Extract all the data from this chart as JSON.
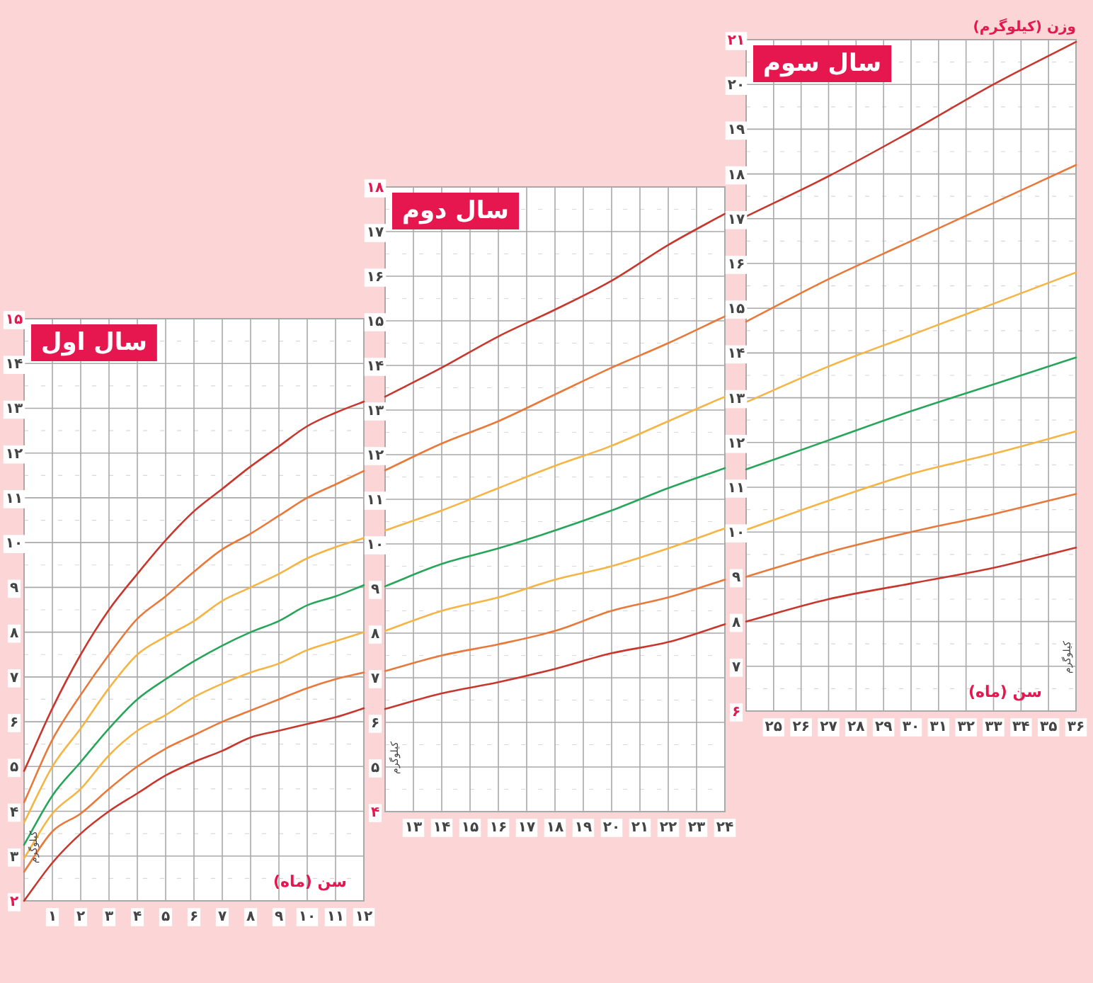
{
  "chart_data": [
    {
      "type": "line",
      "title": "سال اول",
      "xlabel": "سن (ماه)",
      "ylabel": "کیلوگرم",
      "grid": true,
      "x": [
        0,
        1,
        2,
        3,
        4,
        5,
        6,
        7,
        8,
        9,
        10,
        11,
        12
      ],
      "xlim": [
        0,
        12
      ],
      "ylim": [
        2,
        15
      ],
      "xticks": [
        {
          "value": 0,
          "label": null
        },
        {
          "value": 1,
          "label": "۱"
        },
        {
          "value": 2,
          "label": "۲"
        },
        {
          "value": 3,
          "label": "۳"
        },
        {
          "value": 4,
          "label": "۴"
        },
        {
          "value": 5,
          "label": "۵"
        },
        {
          "value": 6,
          "label": "۶"
        },
        {
          "value": 7,
          "label": "۷"
        },
        {
          "value": 8,
          "label": "۸"
        },
        {
          "value": 9,
          "label": "۹"
        },
        {
          "value": 10,
          "label": "۱۰"
        },
        {
          "value": 11,
          "label": "۱۱"
        },
        {
          "value": 12,
          "label": "۱۲"
        }
      ],
      "yticks": [
        {
          "value": 2,
          "label": "۲"
        },
        {
          "value": 3,
          "label": "۳"
        },
        {
          "value": 4,
          "label": "۴"
        },
        {
          "value": 5,
          "label": "۵"
        },
        {
          "value": 6,
          "label": "۶"
        },
        {
          "value": 7,
          "label": "۷"
        },
        {
          "value": 8,
          "label": "۸"
        },
        {
          "value": 9,
          "label": "۹"
        },
        {
          "value": 10,
          "label": "۱۰"
        },
        {
          "value": 11,
          "label": "۱۱"
        },
        {
          "value": 12,
          "label": "۱۲"
        },
        {
          "value": 13,
          "label": "۱۳"
        },
        {
          "value": 14,
          "label": "۱۴"
        },
        {
          "value": 15,
          "label": "۱۵"
        }
      ],
      "series": [
        {
          "color": "#c8372d",
          "values": [
            4.9,
            6.3,
            7.5,
            8.5,
            9.3,
            10.05,
            10.7,
            11.2,
            11.7,
            12.15,
            12.6,
            12.9,
            13.15
          ]
        },
        {
          "color": "#e8793a",
          "values": [
            4.2,
            5.6,
            6.6,
            7.5,
            8.3,
            8.8,
            9.35,
            9.85,
            10.2,
            10.6,
            11.0,
            11.3,
            11.6
          ]
        },
        {
          "color": "#f6b444",
          "values": [
            3.75,
            5.0,
            5.85,
            6.75,
            7.5,
            7.9,
            8.25,
            8.7,
            9.0,
            9.3,
            9.65,
            9.9,
            10.1
          ]
        },
        {
          "color": "#27a55a",
          "values": [
            3.25,
            4.35,
            5.1,
            5.85,
            6.5,
            6.95,
            7.35,
            7.7,
            8.0,
            8.25,
            8.6,
            8.8,
            9.05
          ]
        },
        {
          "color": "#f6b444",
          "values": [
            2.95,
            3.95,
            4.5,
            5.25,
            5.8,
            6.15,
            6.55,
            6.85,
            7.1,
            7.3,
            7.6,
            7.8,
            8.0
          ]
        },
        {
          "color": "#e8793a",
          "values": [
            2.65,
            3.55,
            3.95,
            4.5,
            5.0,
            5.4,
            5.7,
            6.0,
            6.25,
            6.5,
            6.75,
            6.95,
            7.1
          ]
        },
        {
          "color": "#c8372d",
          "values": [
            2.0,
            2.85,
            3.5,
            4.0,
            4.4,
            4.8,
            5.1,
            5.35,
            5.65,
            5.8,
            5.95,
            6.1,
            6.3
          ]
        }
      ]
    },
    {
      "type": "line",
      "title": "سال دوم",
      "ylabel": "کیلوگرم",
      "grid": true,
      "x": [
        12,
        14,
        16,
        18,
        20,
        22,
        24
      ],
      "xlim": [
        12,
        24
      ],
      "ylim": [
        4,
        18
      ],
      "xticks": [
        {
          "value": 12,
          "label": null
        },
        {
          "value": 13,
          "label": "۱۳"
        },
        {
          "value": 14,
          "label": "۱۴"
        },
        {
          "value": 15,
          "label": "۱۵"
        },
        {
          "value": 16,
          "label": "۱۶"
        },
        {
          "value": 17,
          "label": "۱۷"
        },
        {
          "value": 18,
          "label": "۱۸"
        },
        {
          "value": 19,
          "label": "۱۹"
        },
        {
          "value": 20,
          "label": "۲۰"
        },
        {
          "value": 21,
          "label": "۲۱"
        },
        {
          "value": 22,
          "label": "۲۲"
        },
        {
          "value": 23,
          "label": "۲۳"
        },
        {
          "value": 24,
          "label": "۲۴"
        }
      ],
      "yticks": [
        {
          "value": 4,
          "label": "۴"
        },
        {
          "value": 5,
          "label": "۵"
        },
        {
          "value": 6,
          "label": "۶"
        },
        {
          "value": 7,
          "label": "۷"
        },
        {
          "value": 8,
          "label": "۸"
        },
        {
          "value": 9,
          "label": "۹"
        },
        {
          "value": 10,
          "label": "۱۰"
        },
        {
          "value": 11,
          "label": "۱۱"
        },
        {
          "value": 12,
          "label": "۱۲"
        },
        {
          "value": 13,
          "label": "۱۳"
        },
        {
          "value": 14,
          "label": "۱۴"
        },
        {
          "value": 15,
          "label": "۱۵"
        },
        {
          "value": 16,
          "label": "۱۶"
        },
        {
          "value": 17,
          "label": "۱۷"
        },
        {
          "value": 18,
          "label": "۱۸"
        }
      ],
      "series": [
        {
          "color": "#c8372d",
          "values": [
            13.3,
            13.95,
            14.65,
            15.25,
            15.9,
            16.7,
            17.4
          ]
        },
        {
          "color": "#e8793a",
          "values": [
            11.65,
            12.25,
            12.75,
            13.35,
            13.95,
            14.5,
            15.1
          ]
        },
        {
          "color": "#f6b444",
          "values": [
            10.3,
            10.75,
            11.25,
            11.75,
            12.2,
            12.75,
            13.3
          ]
        },
        {
          "color": "#27a55a",
          "values": [
            9.05,
            9.55,
            9.9,
            10.3,
            10.75,
            11.25,
            11.7
          ]
        },
        {
          "color": "#f6b444",
          "values": [
            8.05,
            8.5,
            8.8,
            9.2,
            9.5,
            9.9,
            10.35
          ]
        },
        {
          "color": "#e8793a",
          "values": [
            7.15,
            7.5,
            7.75,
            8.05,
            8.5,
            8.8,
            9.2
          ]
        },
        {
          "color": "#c8372d",
          "values": [
            6.3,
            6.65,
            6.9,
            7.2,
            7.55,
            7.8,
            8.2
          ]
        }
      ]
    },
    {
      "type": "line",
      "title": "سال سوم",
      "xlabel": "سن (ماه)",
      "ylabel": "کیلوگرم",
      "grid": true,
      "annotations": [
        "وزن (کیلوگرم)"
      ],
      "x": [
        24,
        27,
        30,
        33,
        36
      ],
      "xlim": [
        24,
        36
      ],
      "ylim": [
        6,
        21
      ],
      "xticks": [
        {
          "value": 24,
          "label": null
        },
        {
          "value": 25,
          "label": "۲۵"
        },
        {
          "value": 26,
          "label": "۲۶"
        },
        {
          "value": 27,
          "label": "۲۷"
        },
        {
          "value": 28,
          "label": "۲۸"
        },
        {
          "value": 29,
          "label": "۲۹"
        },
        {
          "value": 30,
          "label": "۳۰"
        },
        {
          "value": 31,
          "label": "۳۱"
        },
        {
          "value": 32,
          "label": "۳۲"
        },
        {
          "value": 33,
          "label": "۳۳"
        },
        {
          "value": 34,
          "label": "۳۴"
        },
        {
          "value": 35,
          "label": "۳۵"
        },
        {
          "value": 36,
          "label": "۳۶"
        }
      ],
      "yticks": [
        {
          "value": 6,
          "label": "۶"
        },
        {
          "value": 7,
          "label": "۷"
        },
        {
          "value": 8,
          "label": "۸"
        },
        {
          "value": 9,
          "label": "۹"
        },
        {
          "value": 10,
          "label": "۱۰"
        },
        {
          "value": 11,
          "label": "۱۱"
        },
        {
          "value": 12,
          "label": "۱۲"
        },
        {
          "value": 13,
          "label": "۱۳"
        },
        {
          "value": 14,
          "label": "۱۴"
        },
        {
          "value": 15,
          "label": "۱۵"
        },
        {
          "value": 16,
          "label": "۱۶"
        },
        {
          "value": 17,
          "label": "۱۷"
        },
        {
          "value": 18,
          "label": "۱۸"
        },
        {
          "value": 19,
          "label": "۱۹"
        },
        {
          "value": 20,
          "label": "۲۰"
        },
        {
          "value": 21,
          "label": "۲۱"
        }
      ],
      "series": [
        {
          "color": "#c8372d",
          "values": [
            17.05,
            17.95,
            18.95,
            20.0,
            20.95
          ]
        },
        {
          "color": "#e8793a",
          "values": [
            14.7,
            15.65,
            16.5,
            17.35,
            18.2
          ]
        },
        {
          "color": "#f6b444",
          "values": [
            12.9,
            13.7,
            14.4,
            15.1,
            15.8
          ]
        },
        {
          "color": "#27a55a",
          "values": [
            11.4,
            12.05,
            12.7,
            13.3,
            13.9
          ]
        },
        {
          "color": "#f6b444",
          "values": [
            10.05,
            10.7,
            11.3,
            11.75,
            12.25
          ]
        },
        {
          "color": "#e8793a",
          "values": [
            9.0,
            9.55,
            10.0,
            10.4,
            10.85
          ]
        },
        {
          "color": "#c8372d",
          "values": [
            8.0,
            8.5,
            8.85,
            9.2,
            9.65
          ]
        }
      ]
    }
  ]
}
